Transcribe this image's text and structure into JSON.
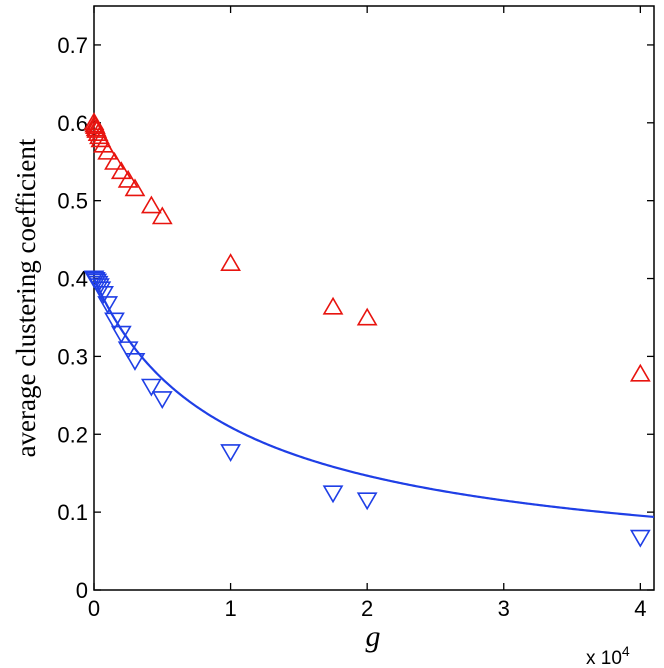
{
  "chart_data": {
    "type": "scatter",
    "xlabel": "g",
    "ylabel": "average clustering coefficient",
    "xlim": [
      0,
      41000
    ],
    "ylim": [
      0,
      0.75
    ],
    "x_ticks": [
      0,
      10000,
      20000,
      30000,
      40000
    ],
    "x_tick_labels": [
      "0",
      "1",
      "2",
      "3",
      "4"
    ],
    "x_multiplier": {
      "base": "x 10",
      "exponent": "4"
    },
    "y_ticks": [
      0,
      0.1,
      0.2,
      0.3,
      0.4,
      0.5,
      0.6,
      0.7
    ],
    "y_tick_labels": [
      "0",
      "0.1",
      "0.2",
      "0.3",
      "0.4",
      "0.5",
      "0.6",
      "0.7"
    ],
    "grid": false,
    "series": [
      {
        "marker": "triangle-up",
        "color": "#e8140f",
        "points": [
          [
            0,
            0.6
          ],
          [
            50,
            0.597
          ],
          [
            100,
            0.595
          ],
          [
            150,
            0.592
          ],
          [
            200,
            0.59
          ],
          [
            300,
            0.586
          ],
          [
            400,
            0.582
          ],
          [
            500,
            0.578
          ],
          [
            700,
            0.571
          ],
          [
            1000,
            0.562
          ],
          [
            1500,
            0.549
          ],
          [
            2000,
            0.537
          ],
          [
            2500,
            0.526
          ],
          [
            3000,
            0.515
          ],
          [
            4200,
            0.493
          ],
          [
            5000,
            0.479
          ],
          [
            10000,
            0.419
          ],
          [
            17500,
            0.363
          ],
          [
            20000,
            0.349
          ],
          [
            40000,
            0.277
          ]
        ]
      },
      {
        "marker": "triangle-down",
        "color": "#1f3fe6",
        "points": [
          [
            0,
            0.401
          ],
          [
            100,
            0.399
          ],
          [
            200,
            0.397
          ],
          [
            300,
            0.394
          ],
          [
            400,
            0.391
          ],
          [
            500,
            0.387
          ],
          [
            700,
            0.381
          ],
          [
            1000,
            0.368
          ],
          [
            1500,
            0.347
          ],
          [
            2000,
            0.33
          ],
          [
            2500,
            0.31
          ],
          [
            3000,
            0.295
          ],
          [
            4200,
            0.262
          ],
          [
            5000,
            0.246
          ],
          [
            10000,
            0.178
          ],
          [
            17500,
            0.125
          ],
          [
            20000,
            0.116
          ],
          [
            40000,
            0.068
          ]
        ]
      }
    ],
    "fit_line": {
      "color": "#1f3fe6",
      "a": 0.4,
      "c": 8000,
      "p": 0.8
    }
  }
}
